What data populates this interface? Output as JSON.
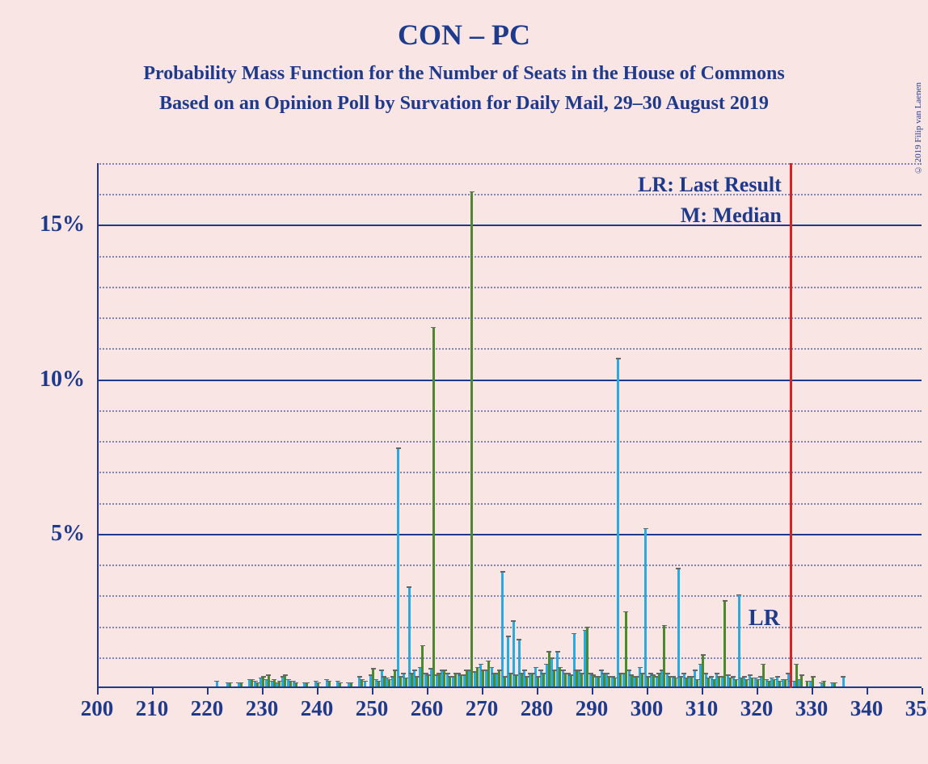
{
  "title": "CON – PC",
  "subtitle1": "Probability Mass Function for the Number of Seats in the House of Commons",
  "subtitle2": "Based on an Opinion Poll by Survation for Daily Mail, 29–30 August 2019",
  "copyright": "© 2019 Filip van Laenen",
  "legend": {
    "lr_label": "LR: Last Result",
    "m_label": "M: Median",
    "lr_marker": "LR"
  },
  "chart": {
    "type": "bar",
    "background_color": "#fae5e5",
    "axis_color": "#1e3a8a",
    "grid_major_color": "#1e3a8a",
    "grid_minor_color": "#1e3a8a",
    "lr_line_color": "#e02020",
    "text_color": "#1e3a8a",
    "x_min": 200,
    "x_max": 350,
    "x_tick_step": 10,
    "y_min": 0,
    "y_max": 17,
    "y_major_ticks": [
      5,
      10,
      15
    ],
    "y_minor_step": 1,
    "lr_position": 326,
    "series": [
      {
        "name": "series-blue",
        "color": "#29abe2",
        "offset": -1.5,
        "data": [
          {
            "x": 222,
            "y": 0.15
          },
          {
            "x": 224,
            "y": 0.1
          },
          {
            "x": 226,
            "y": 0.1
          },
          {
            "x": 228,
            "y": 0.2
          },
          {
            "x": 229,
            "y": 0.15
          },
          {
            "x": 230,
            "y": 0.25
          },
          {
            "x": 231,
            "y": 0.2
          },
          {
            "x": 232,
            "y": 0.15
          },
          {
            "x": 233,
            "y": 0.1
          },
          {
            "x": 234,
            "y": 0.3
          },
          {
            "x": 235,
            "y": 0.2
          },
          {
            "x": 236,
            "y": 0.15
          },
          {
            "x": 238,
            "y": 0.1
          },
          {
            "x": 240,
            "y": 0.15
          },
          {
            "x": 242,
            "y": 0.2
          },
          {
            "x": 244,
            "y": 0.15
          },
          {
            "x": 246,
            "y": 0.1
          },
          {
            "x": 248,
            "y": 0.3
          },
          {
            "x": 249,
            "y": 0.15
          },
          {
            "x": 250,
            "y": 0.35
          },
          {
            "x": 251,
            "y": 0.2
          },
          {
            "x": 252,
            "y": 0.5
          },
          {
            "x": 253,
            "y": 0.25
          },
          {
            "x": 254,
            "y": 0.3
          },
          {
            "x": 255,
            "y": 7.7
          },
          {
            "x": 256,
            "y": 0.4
          },
          {
            "x": 257,
            "y": 3.2
          },
          {
            "x": 258,
            "y": 0.5
          },
          {
            "x": 259,
            "y": 0.6
          },
          {
            "x": 260,
            "y": 0.4
          },
          {
            "x": 261,
            "y": 0.55
          },
          {
            "x": 262,
            "y": 0.35
          },
          {
            "x": 263,
            "y": 0.5
          },
          {
            "x": 264,
            "y": 0.4
          },
          {
            "x": 265,
            "y": 0.3
          },
          {
            "x": 266,
            "y": 0.4
          },
          {
            "x": 267,
            "y": 0.35
          },
          {
            "x": 268,
            "y": 0.5
          },
          {
            "x": 269,
            "y": 0.45
          },
          {
            "x": 270,
            "y": 0.7
          },
          {
            "x": 271,
            "y": 0.5
          },
          {
            "x": 272,
            "y": 0.6
          },
          {
            "x": 273,
            "y": 0.4
          },
          {
            "x": 274,
            "y": 3.7
          },
          {
            "x": 275,
            "y": 1.6
          },
          {
            "x": 276,
            "y": 2.1
          },
          {
            "x": 277,
            "y": 1.5
          },
          {
            "x": 278,
            "y": 0.5
          },
          {
            "x": 279,
            "y": 0.4
          },
          {
            "x": 280,
            "y": 0.6
          },
          {
            "x": 281,
            "y": 0.5
          },
          {
            "x": 282,
            "y": 0.7
          },
          {
            "x": 283,
            "y": 0.9
          },
          {
            "x": 284,
            "y": 1.1
          },
          {
            "x": 285,
            "y": 0.5
          },
          {
            "x": 286,
            "y": 0.4
          },
          {
            "x": 287,
            "y": 1.7
          },
          {
            "x": 288,
            "y": 0.5
          },
          {
            "x": 289,
            "y": 1.8
          },
          {
            "x": 290,
            "y": 0.4
          },
          {
            "x": 291,
            "y": 0.3
          },
          {
            "x": 292,
            "y": 0.5
          },
          {
            "x": 293,
            "y": 0.4
          },
          {
            "x": 294,
            "y": 0.3
          },
          {
            "x": 295,
            "y": 10.6
          },
          {
            "x": 296,
            "y": 0.4
          },
          {
            "x": 297,
            "y": 0.5
          },
          {
            "x": 298,
            "y": 0.3
          },
          {
            "x": 299,
            "y": 0.6
          },
          {
            "x": 300,
            "y": 5.1
          },
          {
            "x": 301,
            "y": 0.4
          },
          {
            "x": 302,
            "y": 0.3
          },
          {
            "x": 303,
            "y": 0.5
          },
          {
            "x": 304,
            "y": 0.4
          },
          {
            "x": 305,
            "y": 0.3
          },
          {
            "x": 306,
            "y": 3.8
          },
          {
            "x": 307,
            "y": 0.4
          },
          {
            "x": 308,
            "y": 0.3
          },
          {
            "x": 309,
            "y": 0.5
          },
          {
            "x": 310,
            "y": 0.7
          },
          {
            "x": 311,
            "y": 0.4
          },
          {
            "x": 312,
            "y": 0.3
          },
          {
            "x": 313,
            "y": 0.4
          },
          {
            "x": 314,
            "y": 0.3
          },
          {
            "x": 315,
            "y": 0.35
          },
          {
            "x": 316,
            "y": 0.3
          },
          {
            "x": 317,
            "y": 2.95
          },
          {
            "x": 318,
            "y": 0.3
          },
          {
            "x": 319,
            "y": 0.35
          },
          {
            "x": 320,
            "y": 0.25
          },
          {
            "x": 321,
            "y": 0.3
          },
          {
            "x": 322,
            "y": 0.2
          },
          {
            "x": 323,
            "y": 0.25
          },
          {
            "x": 324,
            "y": 0.3
          },
          {
            "x": 325,
            "y": 0.2
          },
          {
            "x": 326,
            "y": 0.4
          },
          {
            "x": 327,
            "y": 0.15
          },
          {
            "x": 328,
            "y": 0.2
          },
          {
            "x": 330,
            "y": 0.15
          },
          {
            "x": 332,
            "y": 0.1
          },
          {
            "x": 334,
            "y": 0.1
          },
          {
            "x": 336,
            "y": 0.3
          }
        ]
      },
      {
        "name": "series-green",
        "color": "#4a8a2a",
        "offset": 1.5,
        "data": [
          {
            "x": 224,
            "y": 0.1
          },
          {
            "x": 226,
            "y": 0.1
          },
          {
            "x": 228,
            "y": 0.2
          },
          {
            "x": 229,
            "y": 0.1
          },
          {
            "x": 230,
            "y": 0.3
          },
          {
            "x": 231,
            "y": 0.35
          },
          {
            "x": 232,
            "y": 0.2
          },
          {
            "x": 233,
            "y": 0.15
          },
          {
            "x": 234,
            "y": 0.35
          },
          {
            "x": 235,
            "y": 0.15
          },
          {
            "x": 236,
            "y": 0.1
          },
          {
            "x": 238,
            "y": 0.1
          },
          {
            "x": 240,
            "y": 0.1
          },
          {
            "x": 242,
            "y": 0.15
          },
          {
            "x": 244,
            "y": 0.1
          },
          {
            "x": 246,
            "y": 0.1
          },
          {
            "x": 248,
            "y": 0.2
          },
          {
            "x": 250,
            "y": 0.55
          },
          {
            "x": 251,
            "y": 0.15
          },
          {
            "x": 252,
            "y": 0.3
          },
          {
            "x": 253,
            "y": 0.2
          },
          {
            "x": 254,
            "y": 0.5
          },
          {
            "x": 255,
            "y": 0.3
          },
          {
            "x": 256,
            "y": 0.25
          },
          {
            "x": 257,
            "y": 0.4
          },
          {
            "x": 258,
            "y": 0.3
          },
          {
            "x": 259,
            "y": 1.3
          },
          {
            "x": 260,
            "y": 0.35
          },
          {
            "x": 261,
            "y": 11.6
          },
          {
            "x": 262,
            "y": 0.4
          },
          {
            "x": 263,
            "y": 0.5
          },
          {
            "x": 264,
            "y": 0.3
          },
          {
            "x": 265,
            "y": 0.4
          },
          {
            "x": 266,
            "y": 0.35
          },
          {
            "x": 267,
            "y": 0.5
          },
          {
            "x": 268,
            "y": 16.0
          },
          {
            "x": 269,
            "y": 0.6
          },
          {
            "x": 270,
            "y": 0.5
          },
          {
            "x": 271,
            "y": 0.8
          },
          {
            "x": 272,
            "y": 0.4
          },
          {
            "x": 273,
            "y": 0.5
          },
          {
            "x": 274,
            "y": 0.3
          },
          {
            "x": 275,
            "y": 0.4
          },
          {
            "x": 276,
            "y": 0.35
          },
          {
            "x": 277,
            "y": 0.4
          },
          {
            "x": 278,
            "y": 0.3
          },
          {
            "x": 279,
            "y": 0.4
          },
          {
            "x": 280,
            "y": 0.3
          },
          {
            "x": 281,
            "y": 0.4
          },
          {
            "x": 282,
            "y": 1.1
          },
          {
            "x": 283,
            "y": 0.5
          },
          {
            "x": 284,
            "y": 0.6
          },
          {
            "x": 285,
            "y": 0.4
          },
          {
            "x": 286,
            "y": 0.35
          },
          {
            "x": 287,
            "y": 0.5
          },
          {
            "x": 288,
            "y": 0.4
          },
          {
            "x": 289,
            "y": 1.9
          },
          {
            "x": 290,
            "y": 0.35
          },
          {
            "x": 291,
            "y": 0.3
          },
          {
            "x": 292,
            "y": 0.4
          },
          {
            "x": 293,
            "y": 0.3
          },
          {
            "x": 294,
            "y": 0.25
          },
          {
            "x": 295,
            "y": 0.4
          },
          {
            "x": 296,
            "y": 2.4
          },
          {
            "x": 297,
            "y": 0.35
          },
          {
            "x": 298,
            "y": 0.3
          },
          {
            "x": 299,
            "y": 0.4
          },
          {
            "x": 300,
            "y": 0.3
          },
          {
            "x": 301,
            "y": 0.35
          },
          {
            "x": 302,
            "y": 0.4
          },
          {
            "x": 303,
            "y": 1.95
          },
          {
            "x": 304,
            "y": 0.3
          },
          {
            "x": 305,
            "y": 0.25
          },
          {
            "x": 306,
            "y": 0.3
          },
          {
            "x": 307,
            "y": 0.25
          },
          {
            "x": 308,
            "y": 0.3
          },
          {
            "x": 309,
            "y": 0.2
          },
          {
            "x": 310,
            "y": 1.0
          },
          {
            "x": 311,
            "y": 0.25
          },
          {
            "x": 312,
            "y": 0.2
          },
          {
            "x": 313,
            "y": 0.3
          },
          {
            "x": 314,
            "y": 2.75
          },
          {
            "x": 315,
            "y": 0.25
          },
          {
            "x": 316,
            "y": 0.2
          },
          {
            "x": 317,
            "y": 0.25
          },
          {
            "x": 318,
            "y": 0.2
          },
          {
            "x": 319,
            "y": 0.25
          },
          {
            "x": 320,
            "y": 0.2
          },
          {
            "x": 321,
            "y": 0.7
          },
          {
            "x": 322,
            "y": 0.15
          },
          {
            "x": 323,
            "y": 0.2
          },
          {
            "x": 324,
            "y": 0.15
          },
          {
            "x": 325,
            "y": 0.2
          },
          {
            "x": 326,
            "y": 0.15
          },
          {
            "x": 327,
            "y": 0.7
          },
          {
            "x": 328,
            "y": 0.35
          },
          {
            "x": 329,
            "y": 0.15
          },
          {
            "x": 330,
            "y": 0.3
          },
          {
            "x": 332,
            "y": 0.15
          },
          {
            "x": 334,
            "y": 0.1
          }
        ]
      }
    ]
  }
}
